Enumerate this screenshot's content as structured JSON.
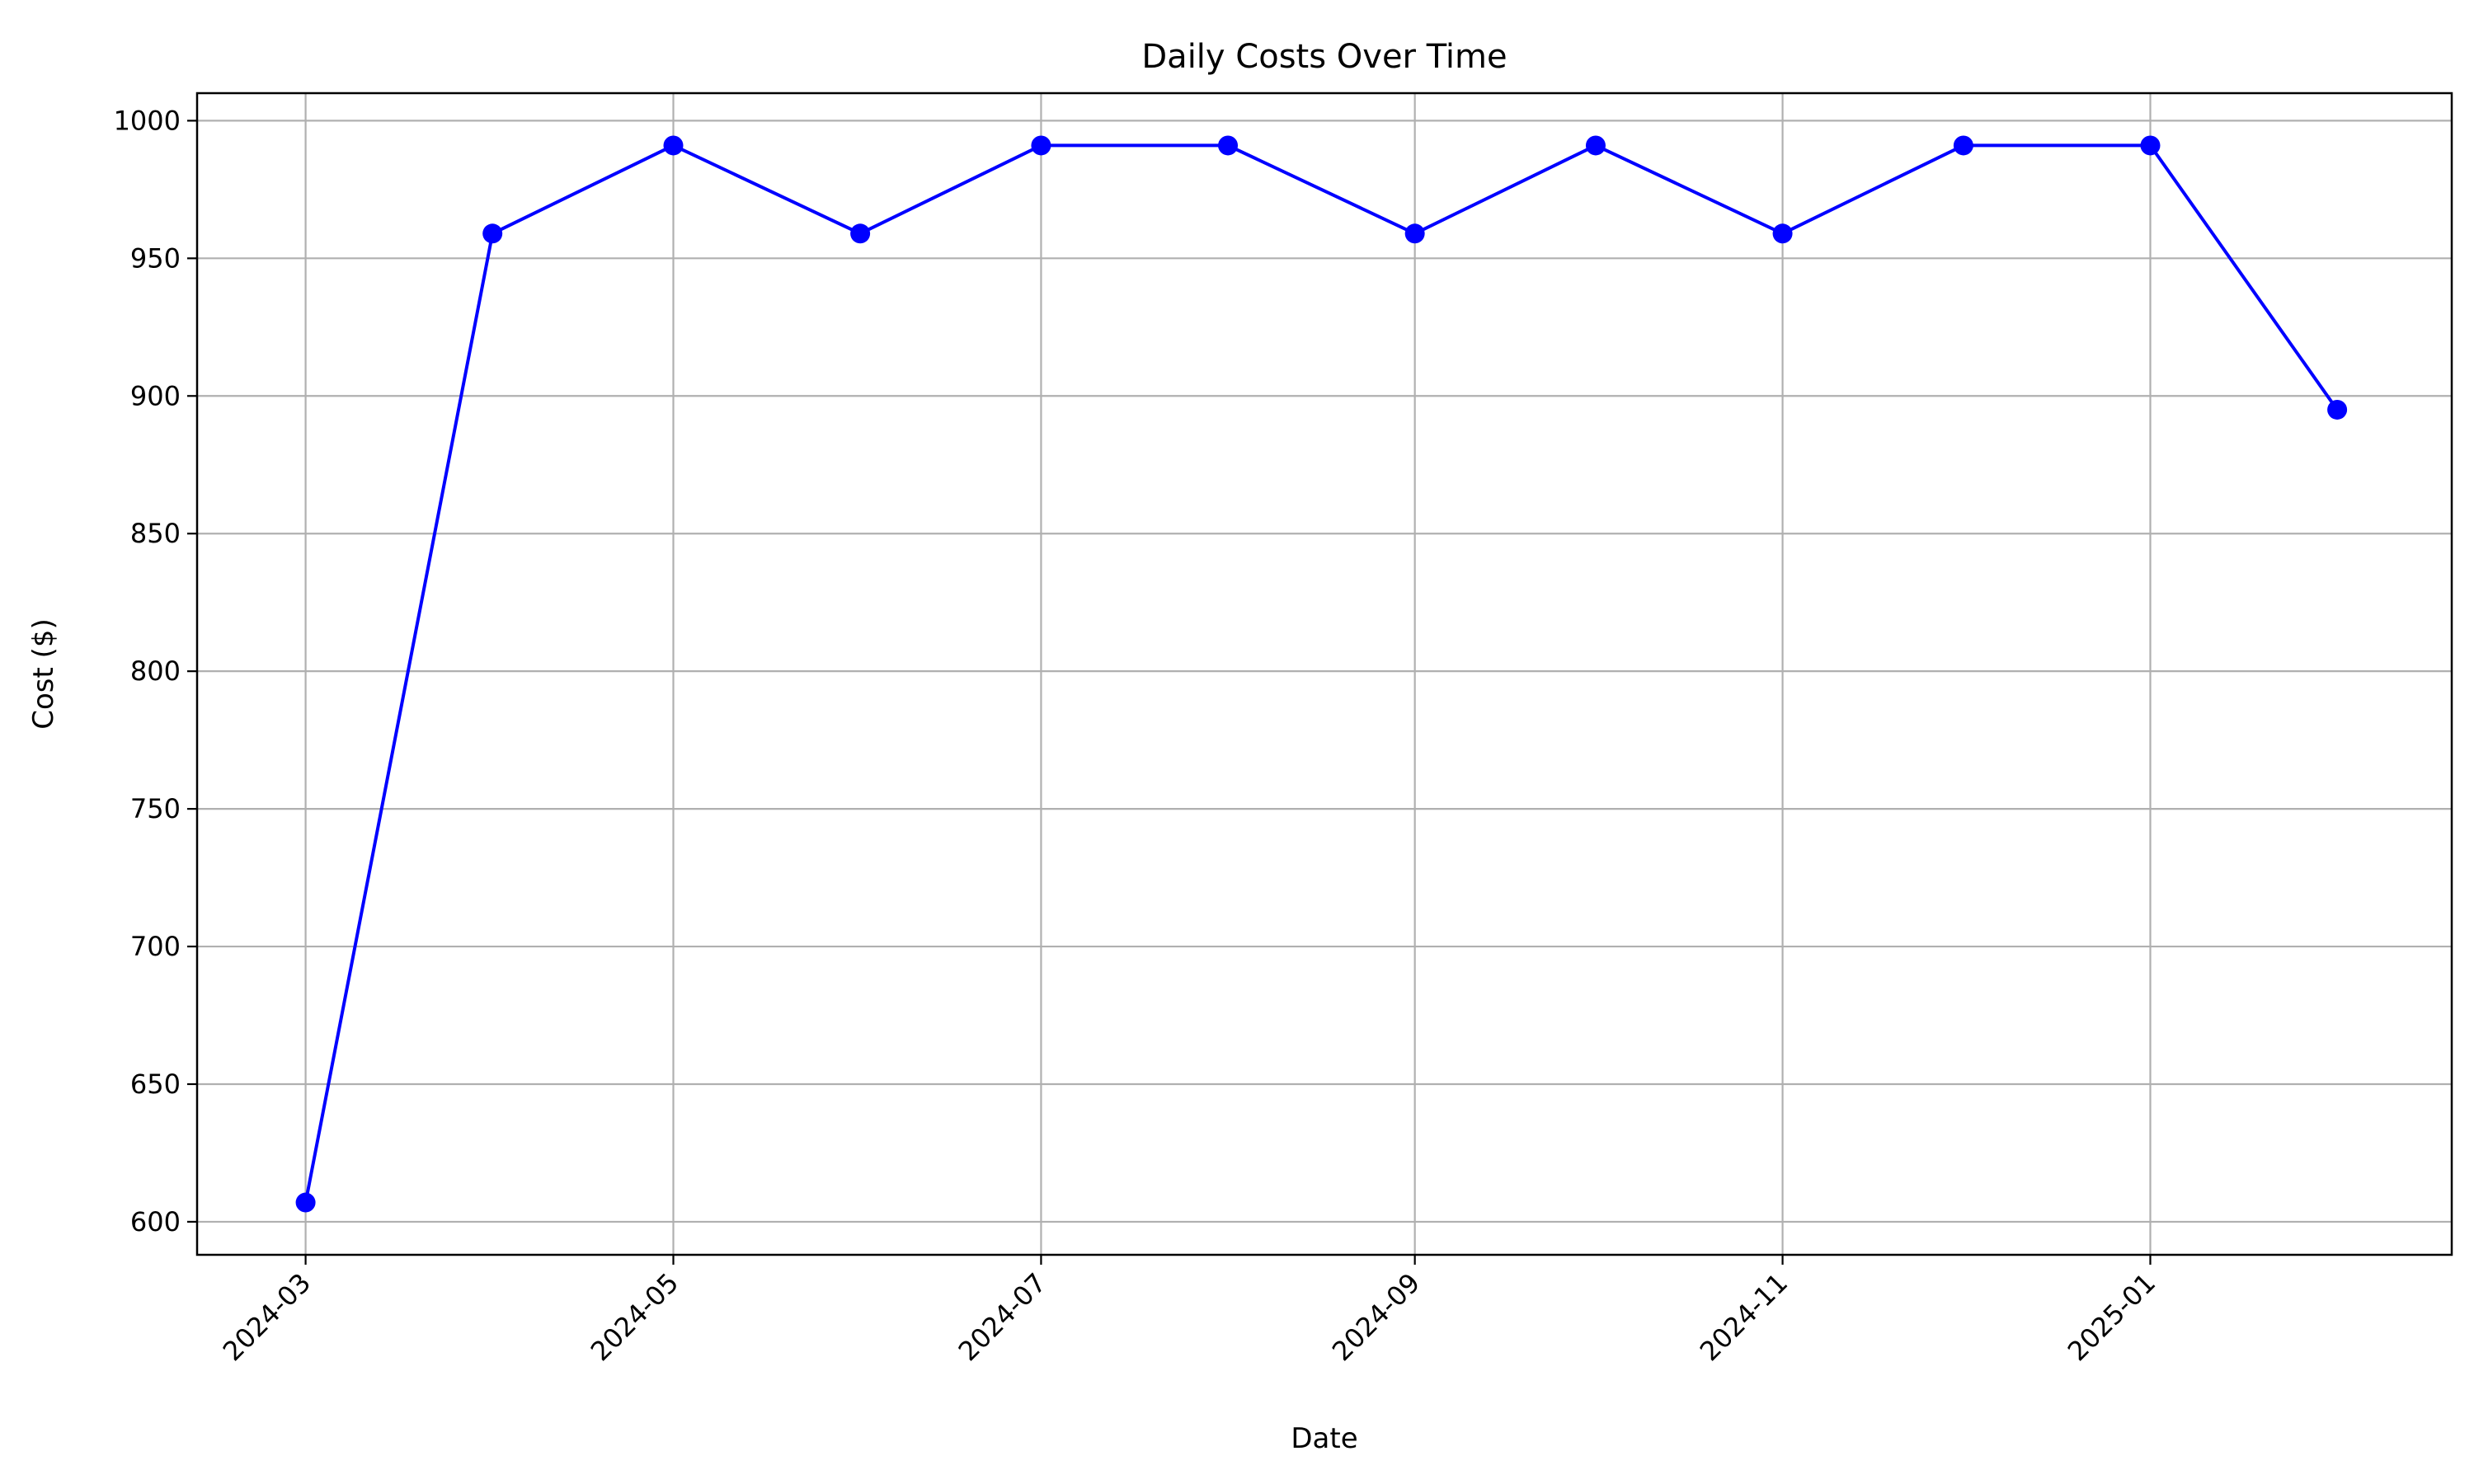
{
  "chart_data": {
    "type": "line",
    "title": "Daily Costs Over Time",
    "xlabel": "Date",
    "ylabel": "Cost ($)",
    "x": [
      "2024-03-01",
      "2024-04-01",
      "2024-05-01",
      "2024-06-01",
      "2024-07-01",
      "2024-08-01",
      "2024-09-01",
      "2024-10-01",
      "2024-11-01",
      "2024-12-01",
      "2025-01-01",
      "2025-02-01"
    ],
    "series": [
      {
        "values": [
          607,
          959,
          991,
          959,
          991,
          991,
          959,
          991,
          959,
          991,
          991,
          895
        ],
        "color": "#0000ff",
        "marker": "circle"
      }
    ],
    "xticks": [
      "2024-03",
      "2024-05",
      "2024-07",
      "2024-09",
      "2024-11",
      "2025-01"
    ],
    "yticks": [
      600,
      650,
      700,
      750,
      800,
      850,
      900,
      950,
      1000
    ],
    "ylim": [
      588,
      1010
    ],
    "xlim": [
      "2024-02-12",
      "2025-02-20"
    ],
    "grid": true,
    "colors": {
      "line": "#0000ff",
      "grid": "#b0b0b0",
      "axes": "#000000"
    }
  }
}
